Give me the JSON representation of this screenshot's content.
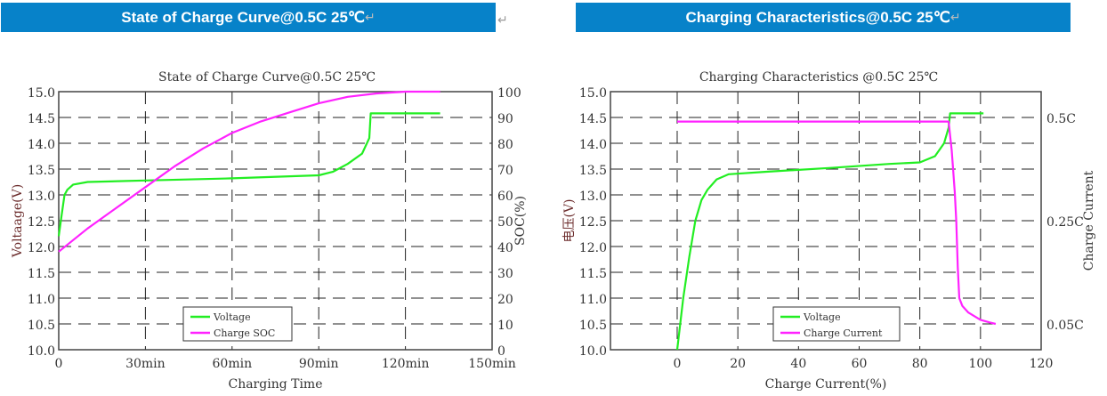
{
  "headers": [
    {
      "title": "State of Charge Curve@0.5C 25℃",
      "mark": "↵"
    },
    {
      "title": "Charging Characteristics@0.5C 25℃",
      "mark": "↵"
    }
  ],
  "outside_mark": "↵",
  "chart_data": [
    {
      "type": "line",
      "title": "State of Charge Curve@0.5C 25℃",
      "xlabel": "Charging Time",
      "ylabel": "Voltaage(V)",
      "y2label": "SOC(%)",
      "xlim": [
        0,
        150
      ],
      "ylim": [
        10.0,
        15.0
      ],
      "y2lim": [
        0,
        100
      ],
      "xticks": [
        {
          "v": 0,
          "label": "0"
        },
        {
          "v": 30,
          "label": "30min"
        },
        {
          "v": 60,
          "label": "60min"
        },
        {
          "v": 90,
          "label": "90min"
        },
        {
          "v": 120,
          "label": "120min"
        },
        {
          "v": 150,
          "label": "150min"
        }
      ],
      "yticks": [
        "10.0",
        "10.5",
        "11.0",
        "11.5",
        "12.0",
        "12.5",
        "13.0",
        "13.5",
        "14.0",
        "14.5",
        "15.0"
      ],
      "y2ticks": [
        "0",
        "10",
        "20",
        "30",
        "40",
        "50",
        "60",
        "70",
        "80",
        "90",
        "100"
      ],
      "grid": true,
      "legend_position": "bottom-center",
      "series": [
        {
          "name": "Voltage",
          "axis": "left",
          "color": "#22ee22",
          "x": [
            0,
            1,
            2,
            3,
            5,
            10,
            30,
            60,
            90,
            95,
            100,
            105,
            107.5,
            108,
            132
          ],
          "y": [
            12.2,
            12.6,
            13.0,
            13.1,
            13.2,
            13.25,
            13.28,
            13.32,
            13.38,
            13.45,
            13.6,
            13.8,
            14.1,
            14.58,
            14.58
          ]
        },
        {
          "name": "Charge SOC",
          "axis": "right",
          "color": "#ff22ff",
          "x": [
            0,
            10,
            20,
            30,
            40,
            50,
            60,
            70,
            80,
            90,
            100,
            110,
            120,
            132
          ],
          "y": [
            38,
            47,
            55,
            63,
            71,
            78,
            84,
            88.5,
            92,
            95.5,
            98,
            99.3,
            100,
            100
          ]
        }
      ]
    },
    {
      "type": "line",
      "title": "Charging Characteristics @0.5C 25℃",
      "xlabel": "Charge Current(%)",
      "ylabel": "电压(V)",
      "y2label": "Charge Current",
      "xlim": [
        -22,
        120
      ],
      "ylim": [
        10.0,
        15.0
      ],
      "xticks": [
        {
          "v": 0,
          "label": "0"
        },
        {
          "v": 20,
          "label": "20"
        },
        {
          "v": 40,
          "label": "40"
        },
        {
          "v": 60,
          "label": "60"
        },
        {
          "v": 80,
          "label": "80"
        },
        {
          "v": 100,
          "label": "100"
        },
        {
          "v": 120,
          "label": "120"
        }
      ],
      "yticks": [
        "10.0",
        "10.5",
        "11.0",
        "11.5",
        "12.0",
        "12.5",
        "13.0",
        "13.5",
        "14.0",
        "14.5",
        "15.0"
      ],
      "y2ticks": [
        {
          "v": 0.05,
          "label": "0.05C"
        },
        {
          "v": 0.25,
          "label": "0.25C"
        },
        {
          "v": 0.5,
          "label": "0.5C"
        }
      ],
      "grid": true,
      "legend_position": "bottom-center",
      "series": [
        {
          "name": "Voltage",
          "axis": "left",
          "color": "#22ee22",
          "x": [
            0,
            1,
            2,
            4,
            6,
            8,
            10,
            13,
            17,
            30,
            50,
            70,
            80,
            85,
            88,
            89.5,
            90,
            101
          ],
          "y": [
            10.0,
            10.5,
            11.0,
            11.8,
            12.5,
            12.9,
            13.1,
            13.3,
            13.4,
            13.45,
            13.52,
            13.6,
            13.63,
            13.75,
            14.0,
            14.3,
            14.58,
            14.58
          ]
        },
        {
          "name": "Charge Current",
          "axis": "right",
          "color": "#ff22ff",
          "x": [
            0,
            89.5,
            90.5,
            91.5,
            92,
            92.5,
            93,
            94,
            96,
            98,
            100,
            103,
            105
          ],
          "y": [
            0.49,
            0.49,
            0.42,
            0.32,
            0.25,
            0.16,
            0.1,
            0.085,
            0.072,
            0.065,
            0.058,
            0.053,
            0.05
          ]
        }
      ]
    }
  ]
}
